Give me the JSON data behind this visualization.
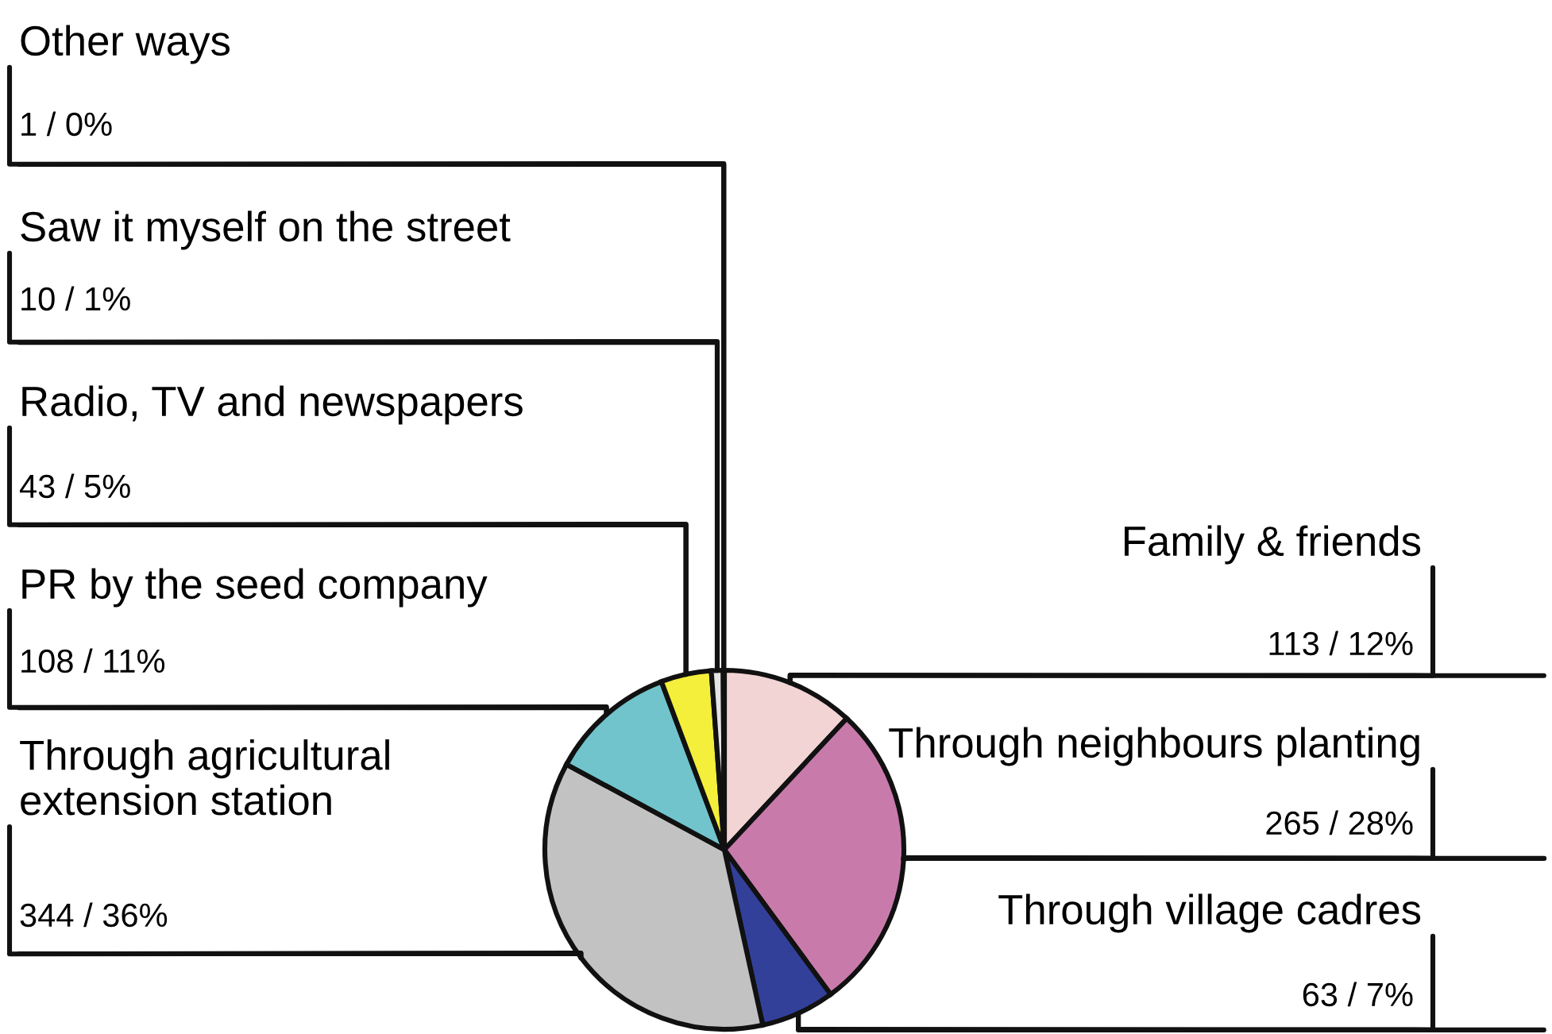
{
  "chart_data": {
    "type": "pie",
    "categories": [
      "Family & friends",
      "Through neighbours planting",
      "Through village cadres",
      "Through agricultural\nextension station",
      "PR by the seed company",
      "Radio, TV and newspapers",
      "Saw it myself on the street",
      "Other ways"
    ],
    "values": [
      113,
      265,
      63,
      344,
      108,
      43,
      10,
      1
    ],
    "colors": [
      "#f2d4d4",
      "#c87bab",
      "#33409a",
      "#c2c2c2",
      "#72c4cc",
      "#f3ef3a",
      "#e4e4e4",
      "#1a1a1a"
    ],
    "value_labels": [
      "113 / 12%",
      "265 / 28%",
      "63 / 7%",
      "344 / 36%",
      "108 / 11%",
      "43 / 5%",
      "10 / 1%",
      "1 / 0%"
    ],
    "legend": false
  }
}
